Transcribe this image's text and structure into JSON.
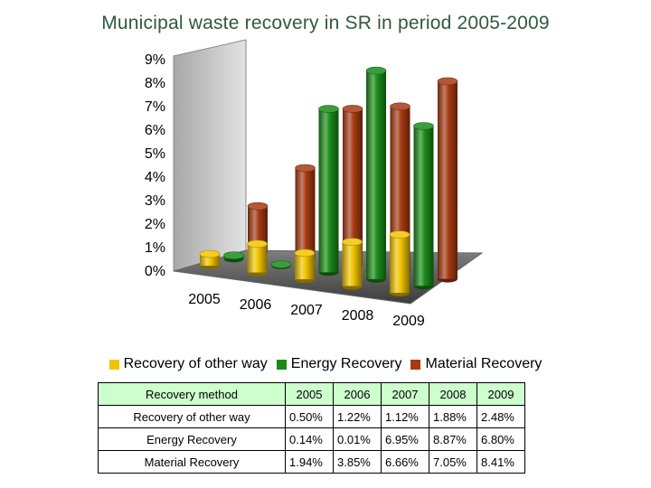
{
  "colors": {
    "other": "#f2c400",
    "energy": "#1a8c1a",
    "material": "#a63a12",
    "title": "#2f5a3c",
    "table_header_bg": "#ccffcc"
  },
  "chart_data": {
    "type": "bar",
    "variant": "3d-cylinder",
    "title": "Municipal waste recovery in SR in period 2005-2009",
    "categories": [
      "2005",
      "2006",
      "2007",
      "2008",
      "2009"
    ],
    "y_ticks": [
      "0%",
      "1%",
      "2%",
      "3%",
      "4%",
      "5%",
      "6%",
      "7%",
      "8%",
      "9%"
    ],
    "ylim": [
      0,
      9
    ],
    "unit": "%",
    "legend_position": "bottom",
    "grid": false,
    "series": [
      {
        "name": "Recovery of other way",
        "color_key": "other",
        "values": [
          0.5,
          1.22,
          1.12,
          1.88,
          2.48
        ]
      },
      {
        "name": "Energy Recovery",
        "color_key": "energy",
        "values": [
          0.14,
          0.01,
          6.95,
          8.87,
          6.8
        ]
      },
      {
        "name": "Material Recovery",
        "color_key": "material",
        "values": [
          1.94,
          3.85,
          6.66,
          7.05,
          8.41
        ]
      }
    ]
  },
  "table": {
    "header": [
      "Recovery method",
      "2005",
      "2006",
      "2007",
      "2008",
      "2009"
    ],
    "rows": [
      [
        "Recovery of other way",
        "0.50%",
        "1.22%",
        "1.12%",
        "1.88%",
        "2.48%"
      ],
      [
        "Energy Recovery",
        "0.14%",
        "0.01%",
        "6.95%",
        "8.87%",
        "6.80%"
      ],
      [
        "Material Recovery",
        "1.94%",
        "3.85%",
        "6.66%",
        "7.05%",
        "8.41%"
      ]
    ]
  }
}
